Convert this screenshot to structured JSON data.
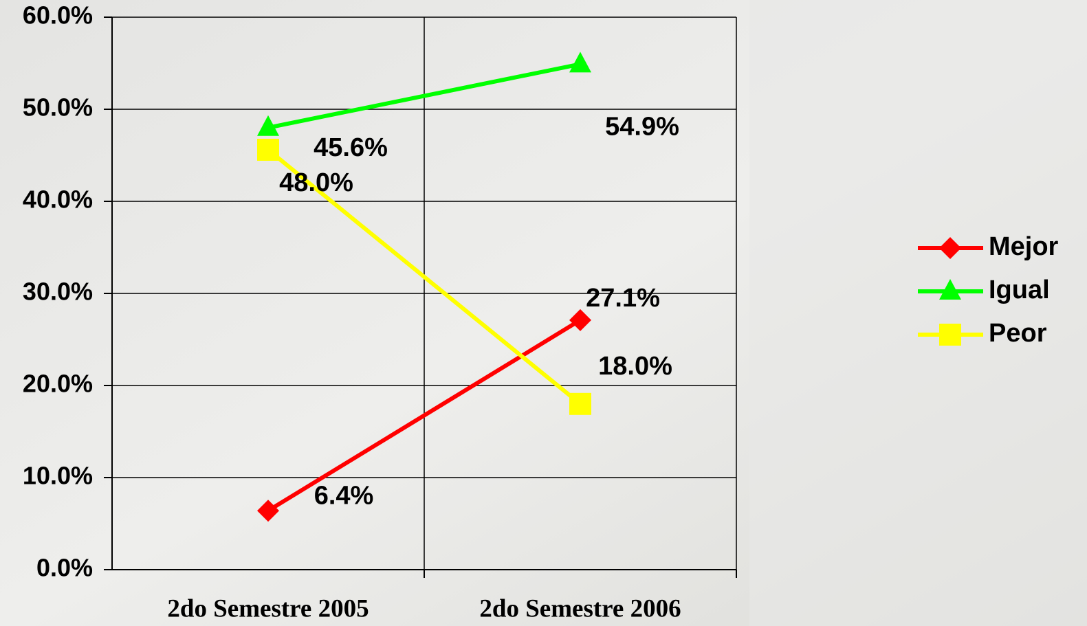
{
  "chart_data": {
    "type": "line",
    "categories": [
      "2do Semestre 2005",
      "2do Semestre 2006"
    ],
    "series": [
      {
        "name": "Mejor",
        "color": "#ff0000",
        "marker": "diamond",
        "values": [
          6.4,
          27.1
        ],
        "value_labels": [
          "6.4%",
          "27.1%"
        ]
      },
      {
        "name": "Igual",
        "color": "#00ff00",
        "marker": "triangle",
        "values": [
          48.0,
          54.9
        ],
        "value_labels": [
          "48.0%",
          "54.9%"
        ]
      },
      {
        "name": "Peor",
        "color": "#ffff00",
        "marker": "square",
        "values": [
          45.6,
          18.0
        ],
        "value_labels": [
          "45.6%",
          "18.0%"
        ]
      }
    ],
    "ylim": [
      0,
      60
    ],
    "yticks": [
      {
        "value": 0,
        "label": "0.0%"
      },
      {
        "value": 10,
        "label": "10.0%"
      },
      {
        "value": 20,
        "label": "20.0%"
      },
      {
        "value": 30,
        "label": "30.0%"
      },
      {
        "value": 40,
        "label": "40.0%"
      },
      {
        "value": 50,
        "label": "50.0%"
      },
      {
        "value": 60,
        "label": "60.0%"
      }
    ],
    "grid": true,
    "legend": "right"
  }
}
